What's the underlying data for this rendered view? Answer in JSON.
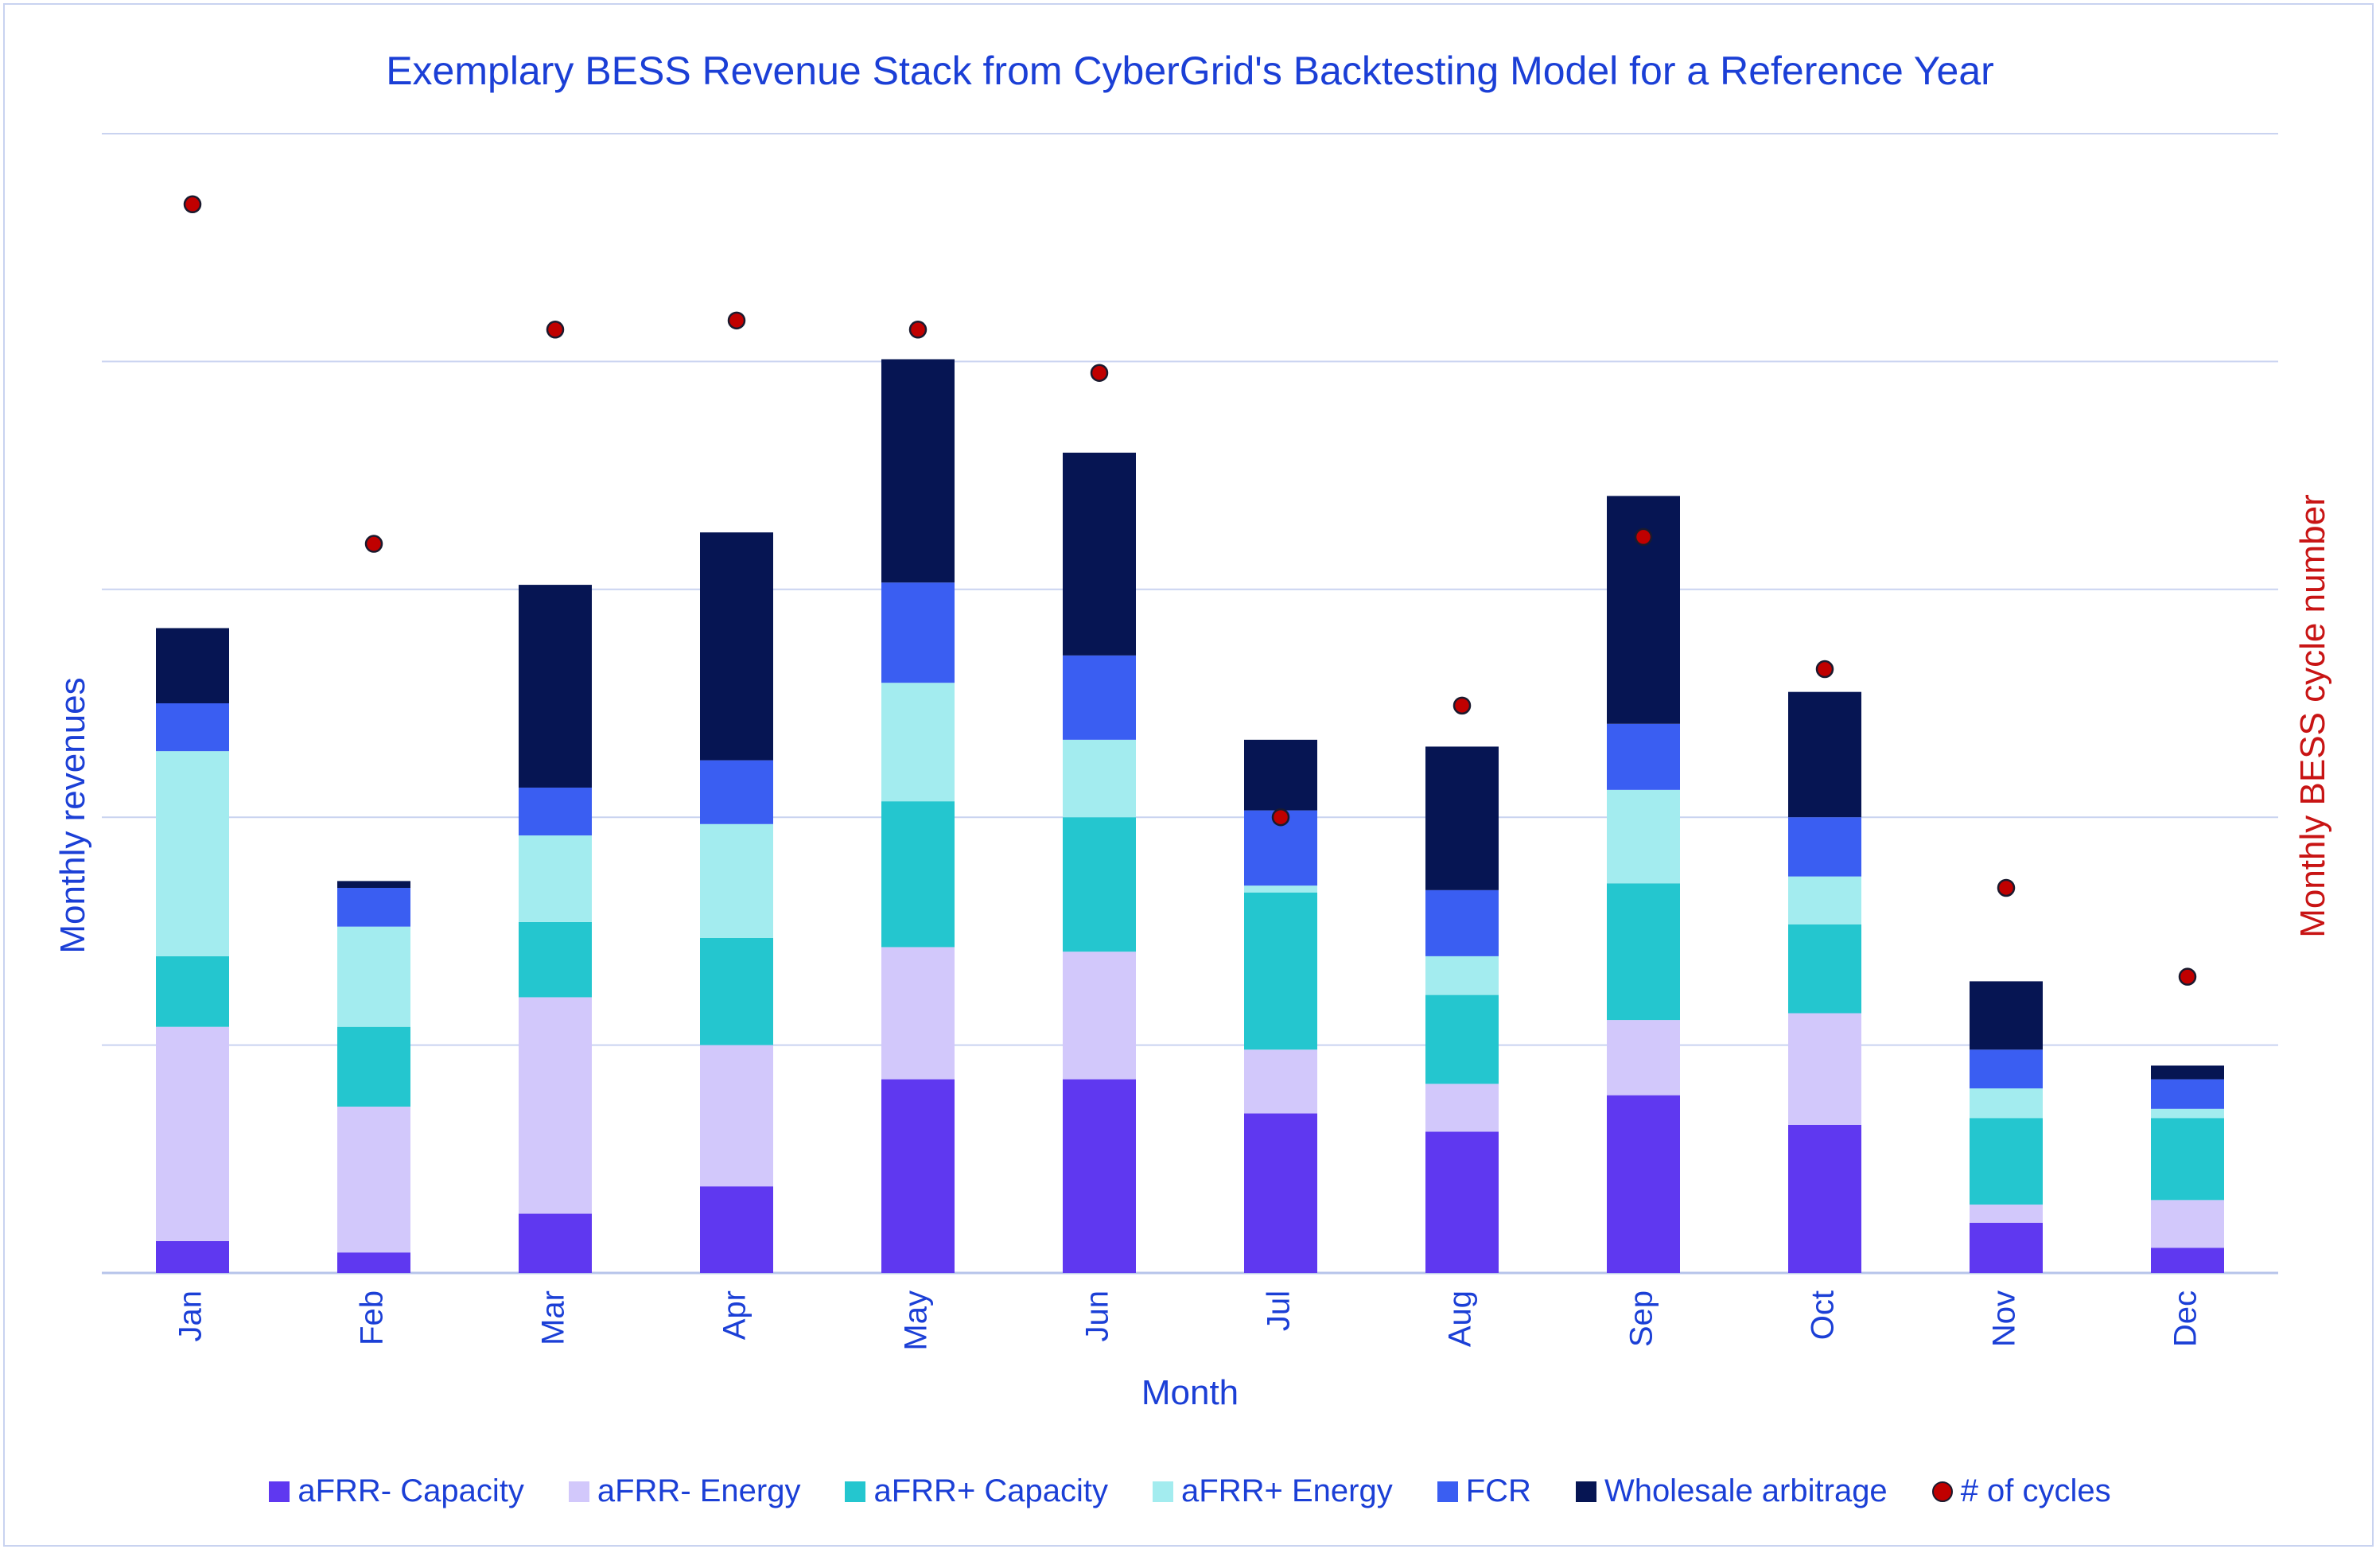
{
  "chart_data": {
    "type": "bar",
    "stacked": true,
    "title": "Exemplary BESS Revenue Stack from CyberGrid's Backtesting Model for a Reference Year",
    "xlabel": "Month",
    "ylabel": "Monthly revenues",
    "y2label": "Monthly BESS cycle number",
    "categories": [
      "Jan",
      "Feb",
      "Mar",
      "Apr",
      "May",
      "Jun",
      "Jul",
      "Aug",
      "Sep",
      "Oct",
      "Nov",
      "Dec"
    ],
    "ylim": [
      0,
      5
    ],
    "y2lim": [
      0,
      5
    ],
    "grid": true,
    "legend_position": "bottom",
    "series": [
      {
        "name": "aFRR- Capacity",
        "color": "#5f38f0",
        "values": [
          0.14,
          0.09,
          0.26,
          0.38,
          0.85,
          0.85,
          0.7,
          0.62,
          0.78,
          0.65,
          0.22,
          0.11
        ]
      },
      {
        "name": "aFRR- Energy",
        "color": "#d2c8fb",
        "values": [
          0.94,
          0.64,
          0.95,
          0.62,
          0.58,
          0.56,
          0.28,
          0.21,
          0.33,
          0.49,
          0.08,
          0.21
        ]
      },
      {
        "name": "aFRR+ Capacity",
        "color": "#24c6cf",
        "values": [
          0.31,
          0.35,
          0.33,
          0.47,
          0.64,
          0.59,
          0.69,
          0.39,
          0.6,
          0.39,
          0.38,
          0.36
        ]
      },
      {
        "name": "aFRR+ Energy",
        "color": "#a3ecef",
        "values": [
          0.9,
          0.44,
          0.38,
          0.5,
          0.52,
          0.34,
          0.03,
          0.17,
          0.41,
          0.21,
          0.13,
          0.04
        ]
      },
      {
        "name": "FCR",
        "color": "#3a5ef2",
        "values": [
          0.21,
          0.17,
          0.21,
          0.28,
          0.44,
          0.37,
          0.33,
          0.29,
          0.29,
          0.26,
          0.17,
          0.13
        ]
      },
      {
        "name": "Wholesale arbitrage",
        "color": "#061553",
        "values": [
          0.33,
          0.03,
          0.89,
          1.0,
          0.98,
          0.89,
          0.31,
          0.63,
          1.0,
          0.55,
          0.3,
          0.06
        ]
      }
    ],
    "line_series": [
      {
        "name": "# of cycles",
        "axis": "right",
        "marker": "circle",
        "color": "#c00000",
        "values": [
          4.69,
          3.2,
          4.14,
          4.18,
          4.14,
          3.95,
          2.0,
          2.49,
          3.23,
          2.65,
          1.69,
          1.3
        ]
      }
    ]
  }
}
